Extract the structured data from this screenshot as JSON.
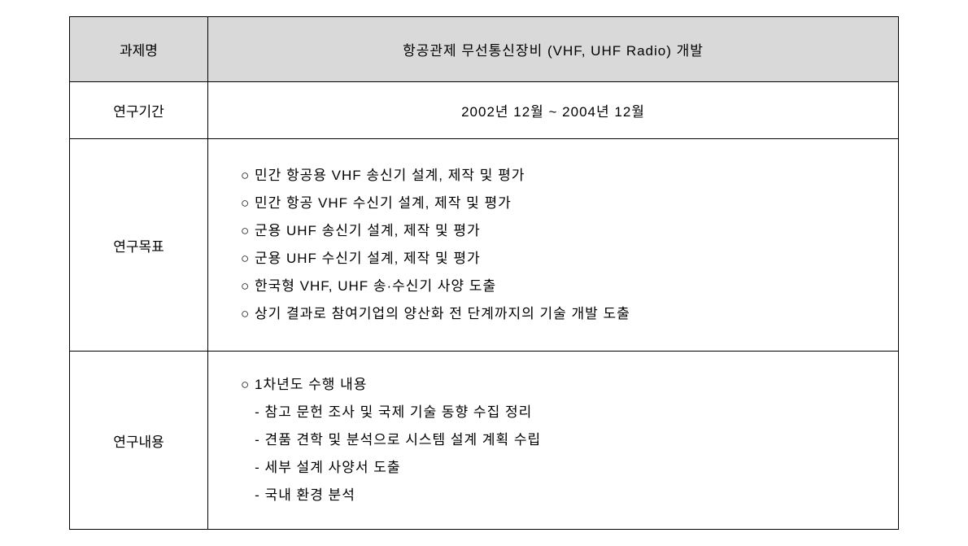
{
  "table": {
    "header_bg": "#d9d9d9",
    "border_color": "#000000",
    "text_color": "#000000",
    "font_size": 17,
    "rows": [
      {
        "label": "과제명",
        "content": "항공관제 무선통신장비 (VHF, UHF Radio) 개발",
        "type": "header"
      },
      {
        "label": "연구기간",
        "content": "2002년 12월 ~ 2004년 12월",
        "type": "centered"
      },
      {
        "label": "연구목표",
        "type": "bullets",
        "items": [
          "○ 민간 항공용 VHF 송신기 설계, 제작 및 평가",
          "○ 민간 항공 VHF 수신기 설계, 제작 및 평가",
          "○ 군용 UHF 송신기 설계, 제작 및 평가",
          "○ 군용 UHF 수신기 설계, 제작 및 평가",
          "○ 한국형 VHF, UHF 송·수신기 사양 도출",
          "○ 상기 결과로 참여기업의 양산화 전 단계까지의 기술 개발 도출"
        ]
      },
      {
        "label": "연구내용",
        "type": "bullets",
        "items": [
          "○ 1차년도 수행 내용",
          "   - 참고 문헌 조사 및 국제 기술 동향 수집 정리",
          "   - 견품 견학 및 분석으로 시스템 설계 계획 수립",
          "   - 세부 설계 사양서 도출",
          "   - 국내 환경 분석"
        ]
      }
    ]
  }
}
